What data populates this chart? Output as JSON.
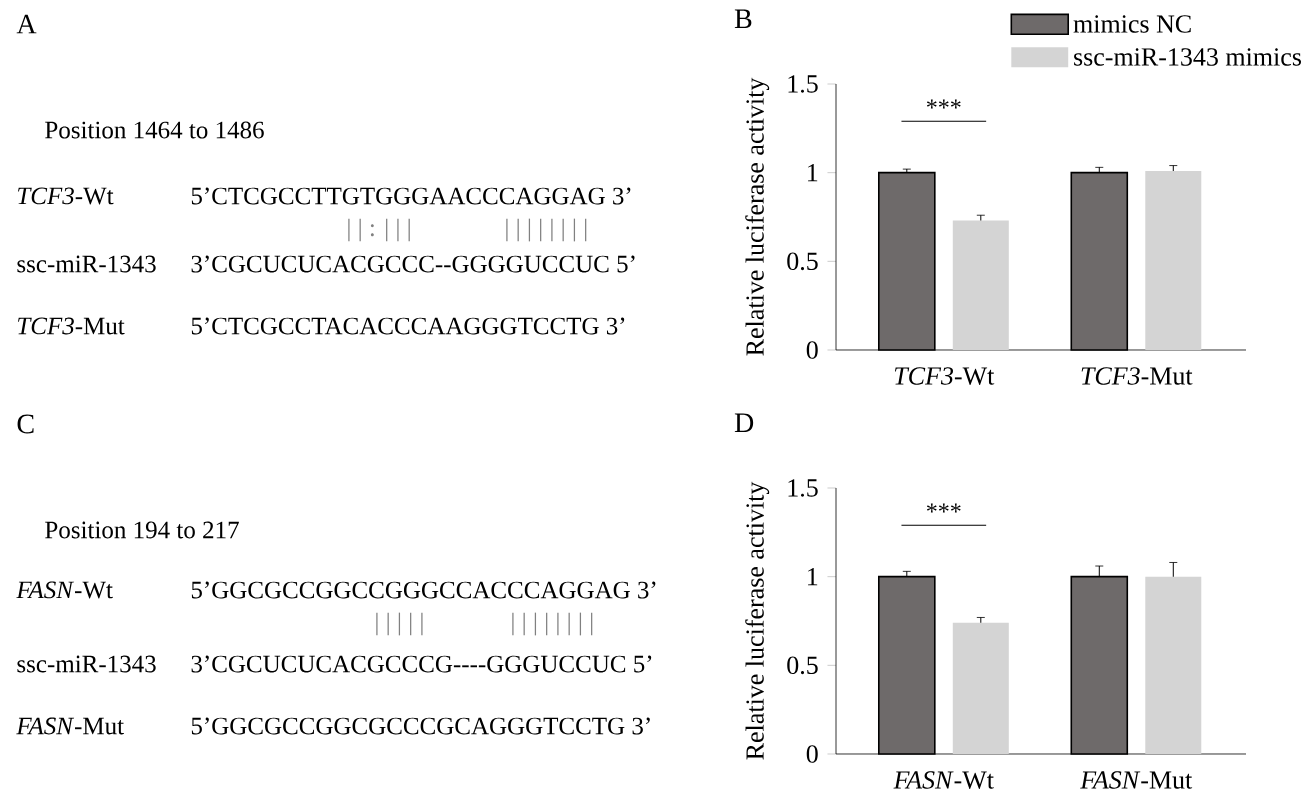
{
  "chart_data": [
    {
      "type": "other",
      "title": "A",
      "annotations": [
        "Position 1464 to 1486",
        "*TCF3*-Wt",
        "5’CTCGCCTTGTGGGAACCCAGGAG 3’",
        "| | : | | |",
        "| | | | | | | |",
        "ssc-miR-1343",
        "3’CGCUCUCACGCCC--GGGGUCCUC 5’",
        "*TCF3*-Mut",
        "5’CTCGCCTACACCCAAGGGTCCTG 3’"
      ]
    },
    {
      "type": "bar",
      "title": "B",
      "ylabel": "Relative luciferase activity",
      "categories": [
        "*TCF3*-Wt",
        "*TCF3*-Mut"
      ],
      "ylim": [
        0,
        1.5
      ],
      "yticks": [
        0,
        0.5,
        1,
        1.5
      ],
      "legend": "top right",
      "annotations": [
        "***"
      ],
      "series": [
        {
          "name": "mimics NC",
          "color": "#6e6a6a",
          "values": [
            1.0,
            1.0
          ],
          "errors": [
            0.02,
            0.03
          ]
        },
        {
          "name": "ssc-miR-1343 mimics",
          "color": "#d4d4d4",
          "values": [
            0.73,
            1.01
          ],
          "errors": [
            0.03,
            0.03
          ]
        }
      ]
    },
    {
      "type": "other",
      "title": "C",
      "annotations": [
        "Position 194 to 217",
        "*FASN*-Wt",
        "5’GGCGCCGGCCGGGCCACCCAGGAG 3’",
        "| | | | |",
        "| | | | | | | |",
        "ssc-miR-1343",
        "3’CGCUCUCACGCCCG----GGGUCCUC 5’",
        "*FASN*-Mut",
        "5’GGCGCCGGCGCCCGCAGGGTCCTG 3’"
      ]
    },
    {
      "type": "bar",
      "title": "D",
      "ylabel": "Relative luciferase activity",
      "categories": [
        "*FASN*-Wt",
        "*FASN*-Mut"
      ],
      "ylim": [
        0,
        1.5
      ],
      "yticks": [
        0,
        0.5,
        1,
        1.5
      ],
      "annotations": [
        "***"
      ],
      "series": [
        {
          "color": "#6e6a6a",
          "values": [
            1.0,
            1.0
          ],
          "errors": [
            0.03,
            0.06
          ]
        },
        {
          "color": "#d4d4d4",
          "values": [
            0.74,
            1.0
          ],
          "errors": [
            0.03,
            0.08
          ]
        }
      ]
    }
  ]
}
